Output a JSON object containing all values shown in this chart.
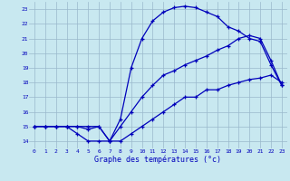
{
  "xlabel": "Graphe des températures (°c)",
  "xlim": [
    -0.5,
    23.5
  ],
  "ylim": [
    13.5,
    23.5
  ],
  "xticks": [
    0,
    1,
    2,
    3,
    4,
    5,
    6,
    7,
    8,
    9,
    10,
    11,
    12,
    13,
    14,
    15,
    16,
    17,
    18,
    19,
    20,
    21,
    22,
    23
  ],
  "yticks": [
    14,
    15,
    16,
    17,
    18,
    19,
    20,
    21,
    22,
    23
  ],
  "bg_color": "#c8e8f0",
  "line_color": "#0000bb",
  "grid_color": "#9ab8cc",
  "curve1_x": [
    0,
    1,
    2,
    3,
    4,
    5,
    6,
    7,
    8,
    9,
    10,
    11,
    12,
    13,
    14,
    15,
    16,
    17,
    18,
    19,
    20,
    21,
    22,
    23
  ],
  "curve1_y": [
    15,
    15,
    15,
    15,
    15,
    15,
    15,
    14,
    14,
    14.5,
    15,
    15.5,
    16,
    16.5,
    17,
    17,
    17.5,
    17.5,
    17.8,
    18,
    18.2,
    18.3,
    18.5,
    18
  ],
  "curve2_x": [
    0,
    1,
    2,
    3,
    4,
    5,
    6,
    7,
    8,
    9,
    10,
    11,
    12,
    13,
    14,
    15,
    16,
    17,
    18,
    19,
    20,
    21,
    22,
    23
  ],
  "curve2_y": [
    15,
    15,
    15,
    15,
    14.5,
    14,
    14,
    14,
    15.5,
    19,
    21,
    22.2,
    22.8,
    23.1,
    23.2,
    23.1,
    22.8,
    22.5,
    21.8,
    21.5,
    21,
    20.8,
    19.2,
    17.8
  ],
  "curve3_x": [
    0,
    1,
    2,
    3,
    4,
    5,
    6,
    7,
    8,
    9,
    10,
    11,
    12,
    13,
    14,
    15,
    16,
    17,
    18,
    19,
    20,
    21,
    22,
    23
  ],
  "curve3_y": [
    15,
    15,
    15,
    15,
    15,
    14.8,
    15,
    14,
    15,
    16,
    17,
    17.8,
    18.5,
    18.8,
    19.2,
    19.5,
    19.8,
    20.2,
    20.5,
    21,
    21.2,
    21,
    19.5,
    17.8
  ]
}
